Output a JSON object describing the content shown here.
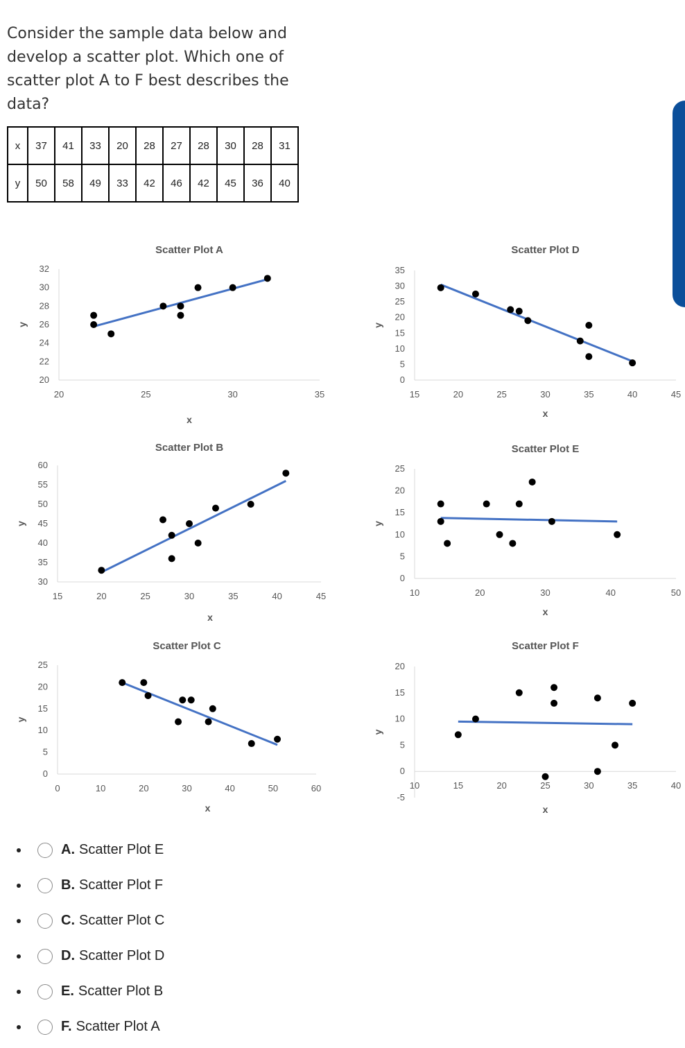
{
  "question": "Consider the sample data below and develop a scatter plot. Which one of scatter plot A to F best describes the data?",
  "table": {
    "x_label": "x",
    "y_label": "y",
    "x_values": [
      "37",
      "41",
      "33",
      "20",
      "28",
      "27",
      "28",
      "30",
      "28",
      "31"
    ],
    "y_values": [
      "50",
      "58",
      "49",
      "33",
      "42",
      "46",
      "42",
      "45",
      "36",
      "40"
    ]
  },
  "accent_colors": {
    "trendline": "#4472c4",
    "points": "#000000",
    "sidebar": "#0b4f9a"
  },
  "chart_data": [
    {
      "type": "scatter",
      "title": "Scatter Plot A",
      "xlabel": "x",
      "ylabel": "y",
      "xlim": [
        20,
        35
      ],
      "ylim": [
        20,
        32
      ],
      "xticks": [
        20,
        25,
        30,
        35
      ],
      "yticks": [
        20,
        22,
        24,
        26,
        28,
        30,
        32
      ],
      "points": [
        [
          22,
          27
        ],
        [
          22,
          26
        ],
        [
          23,
          25
        ],
        [
          26,
          28
        ],
        [
          27,
          28
        ],
        [
          27,
          27
        ],
        [
          28,
          30
        ],
        [
          30,
          30
        ],
        [
          32,
          31
        ]
      ],
      "trendline": [
        [
          22,
          25.8
        ],
        [
          32,
          30.9
        ]
      ]
    },
    {
      "type": "scatter",
      "title": "Scatter Plot B",
      "xlabel": "x",
      "ylabel": "y",
      "xlim": [
        15,
        45
      ],
      "ylim": [
        30,
        60
      ],
      "xticks": [
        15,
        20,
        25,
        30,
        35,
        40,
        45
      ],
      "yticks": [
        30,
        35,
        40,
        45,
        50,
        55,
        60
      ],
      "points": [
        [
          20,
          33
        ],
        [
          27,
          46
        ],
        [
          28,
          42
        ],
        [
          28,
          36
        ],
        [
          30,
          45
        ],
        [
          31,
          40
        ],
        [
          33,
          49
        ],
        [
          37,
          50
        ],
        [
          41,
          58
        ]
      ],
      "trendline": [
        [
          20,
          32.5
        ],
        [
          41,
          56
        ]
      ]
    },
    {
      "type": "scatter",
      "title": "Scatter Plot C",
      "xlabel": "x",
      "ylabel": "y",
      "xlim": [
        0,
        60
      ],
      "ylim": [
        0,
        25
      ],
      "xticks": [
        0,
        10,
        20,
        30,
        40,
        50,
        60
      ],
      "yticks": [
        0,
        5,
        10,
        15,
        20,
        25
      ],
      "points": [
        [
          15,
          21
        ],
        [
          20,
          21
        ],
        [
          21,
          18
        ],
        [
          28,
          12
        ],
        [
          29,
          17
        ],
        [
          31,
          17
        ],
        [
          35,
          12
        ],
        [
          36,
          15
        ],
        [
          45,
          7
        ],
        [
          51,
          8
        ]
      ],
      "trendline": [
        [
          15,
          21
        ],
        [
          51,
          6.7
        ]
      ]
    },
    {
      "type": "scatter",
      "title": "Scatter Plot D",
      "xlabel": "x",
      "ylabel": "y",
      "xlim": [
        15,
        45
      ],
      "ylim": [
        0,
        35
      ],
      "xticks": [
        15,
        20,
        25,
        30,
        35,
        40,
        45
      ],
      "yticks": [
        0,
        5,
        10,
        15,
        20,
        25,
        30,
        35
      ],
      "points": [
        [
          18,
          29.5
        ],
        [
          22,
          27.5
        ],
        [
          26,
          22.5
        ],
        [
          27,
          22
        ],
        [
          28,
          19
        ],
        [
          34,
          12.5
        ],
        [
          35,
          17.5
        ],
        [
          35,
          7.5
        ],
        [
          40,
          5.5
        ]
      ],
      "trendline": [
        [
          18,
          30.5
        ],
        [
          40,
          6
        ]
      ]
    },
    {
      "type": "scatter",
      "title": "Scatter Plot E",
      "xlabel": "x",
      "ylabel": "y",
      "xlim": [
        10,
        50
      ],
      "ylim": [
        0,
        25
      ],
      "xticks": [
        10,
        20,
        30,
        40,
        50
      ],
      "yticks": [
        0,
        5,
        10,
        15,
        20,
        25
      ],
      "points": [
        [
          14,
          17
        ],
        [
          14,
          13
        ],
        [
          15,
          8
        ],
        [
          21,
          17
        ],
        [
          23,
          10
        ],
        [
          25,
          8
        ],
        [
          26,
          17
        ],
        [
          28,
          22
        ],
        [
          31,
          13
        ],
        [
          41,
          10
        ]
      ],
      "trendline": [
        [
          14,
          13.8
        ],
        [
          41,
          13
        ]
      ]
    },
    {
      "type": "scatter",
      "title": "Scatter Plot F",
      "xlabel": "x",
      "ylabel": "y",
      "xlim": [
        10,
        40
      ],
      "ylim": [
        -5,
        20
      ],
      "xticks": [
        10,
        15,
        20,
        25,
        30,
        35,
        40
      ],
      "yticks": [
        -5,
        0,
        5,
        10,
        15,
        20
      ],
      "points": [
        [
          15,
          7
        ],
        [
          17,
          10
        ],
        [
          22,
          15
        ],
        [
          25,
          -1
        ],
        [
          26,
          16
        ],
        [
          26,
          13
        ],
        [
          31,
          14
        ],
        [
          31,
          0
        ],
        [
          33,
          5
        ],
        [
          35,
          13
        ]
      ],
      "trendline": [
        [
          15,
          9.5
        ],
        [
          35,
          9
        ]
      ]
    }
  ],
  "options": [
    {
      "letter": "A.",
      "text": "Scatter Plot E"
    },
    {
      "letter": "B.",
      "text": "Scatter Plot F"
    },
    {
      "letter": "C.",
      "text": "Scatter Plot C"
    },
    {
      "letter": "D.",
      "text": "Scatter Plot D"
    },
    {
      "letter": "E.",
      "text": "Scatter Plot B"
    },
    {
      "letter": "F.",
      "text": "Scatter Plot A"
    }
  ]
}
